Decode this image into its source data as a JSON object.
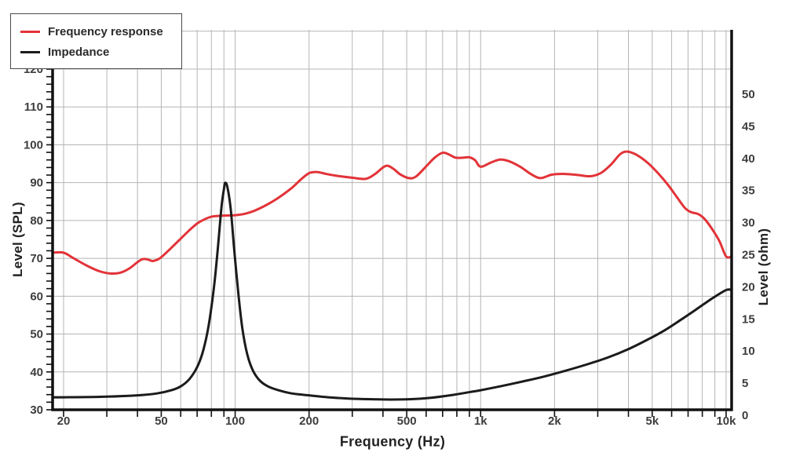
{
  "chart_data": {
    "type": "line",
    "x_scale": "log",
    "xlabel": "Frequency (Hz)",
    "ylabel_left": "Level (SPL)",
    "ylabel_right": "Level (ohm)",
    "x_range": [
      20,
      10000
    ],
    "y_left_range": [
      30,
      120
    ],
    "y_right_range": [
      0,
      50
    ],
    "grid": true,
    "legend_position": "top-left",
    "x_tick_values": [
      20,
      50,
      100,
      200,
      500,
      1000,
      2000,
      5000,
      10000
    ],
    "x_tick_labels": [
      "20",
      "50",
      "100",
      "200",
      "500",
      "1k",
      "2k",
      "5k",
      "10k"
    ],
    "x_minor_gridlines": [
      20,
      30,
      40,
      50,
      60,
      70,
      80,
      90,
      100,
      200,
      300,
      400,
      500,
      600,
      700,
      800,
      900,
      1000,
      2000,
      3000,
      4000,
      5000,
      6000,
      7000,
      8000,
      9000,
      10000
    ],
    "y_left_ticks": [
      30,
      40,
      50,
      60,
      70,
      80,
      90,
      100,
      110,
      120
    ],
    "y_left_minor_step": 2,
    "y_right_ticks": [
      0,
      5,
      10,
      15,
      20,
      25,
      30,
      35,
      40,
      45,
      50
    ],
    "series": [
      {
        "name": "Frequency response",
        "axis": "left",
        "unit": "dB SPL",
        "color": "#e23338",
        "points": [
          [
            20,
            71.5
          ],
          [
            22,
            70.0
          ],
          [
            25,
            68.0
          ],
          [
            28,
            66.6
          ],
          [
            31,
            66.0
          ],
          [
            34,
            66.2
          ],
          [
            37,
            67.3
          ],
          [
            40,
            69.0
          ],
          [
            42,
            69.8
          ],
          [
            44,
            69.7
          ],
          [
            46,
            69.3
          ],
          [
            48,
            69.6
          ],
          [
            50,
            70.3
          ],
          [
            55,
            72.8
          ],
          [
            60,
            75.2
          ],
          [
            65,
            77.4
          ],
          [
            70,
            79.2
          ],
          [
            75,
            80.3
          ],
          [
            80,
            81.0
          ],
          [
            85,
            81.2
          ],
          [
            90,
            81.3
          ],
          [
            100,
            81.4
          ],
          [
            110,
            81.8
          ],
          [
            120,
            82.6
          ],
          [
            135,
            84.2
          ],
          [
            150,
            86.0
          ],
          [
            170,
            88.6
          ],
          [
            185,
            90.8
          ],
          [
            200,
            92.5
          ],
          [
            215,
            92.8
          ],
          [
            235,
            92.3
          ],
          [
            260,
            91.8
          ],
          [
            300,
            91.3
          ],
          [
            340,
            91.0
          ],
          [
            370,
            92.2
          ],
          [
            410,
            94.4
          ],
          [
            440,
            93.7
          ],
          [
            470,
            92.2
          ],
          [
            510,
            91.2
          ],
          [
            545,
            91.6
          ],
          [
            600,
            94.3
          ],
          [
            650,
            96.6
          ],
          [
            700,
            97.9
          ],
          [
            745,
            97.4
          ],
          [
            790,
            96.6
          ],
          [
            850,
            96.6
          ],
          [
            900,
            96.7
          ],
          [
            950,
            95.9
          ],
          [
            1000,
            94.2
          ],
          [
            1100,
            95.3
          ],
          [
            1200,
            96.1
          ],
          [
            1300,
            95.7
          ],
          [
            1450,
            94.2
          ],
          [
            1600,
            92.3
          ],
          [
            1750,
            91.2
          ],
          [
            1950,
            92.1
          ],
          [
            2200,
            92.3
          ],
          [
            2500,
            92.0
          ],
          [
            2800,
            91.7
          ],
          [
            3100,
            92.6
          ],
          [
            3400,
            94.8
          ],
          [
            3700,
            97.5
          ],
          [
            3950,
            98.2
          ],
          [
            4300,
            97.4
          ],
          [
            4800,
            95.2
          ],
          [
            5300,
            92.4
          ],
          [
            5800,
            89.4
          ],
          [
            6300,
            86.2
          ],
          [
            6800,
            83.3
          ],
          [
            7200,
            82.2
          ],
          [
            7700,
            81.7
          ],
          [
            8200,
            80.3
          ],
          [
            8800,
            77.6
          ],
          [
            9400,
            74.5
          ],
          [
            10000,
            70.5
          ]
        ]
      },
      {
        "name": "Impedance",
        "axis": "right",
        "unit": "ohm",
        "color": "#1b1b1b",
        "points": [
          [
            20,
            2.8
          ],
          [
            30,
            2.9
          ],
          [
            40,
            3.1
          ],
          [
            48,
            3.4
          ],
          [
            55,
            3.9
          ],
          [
            60,
            4.5
          ],
          [
            65,
            5.6
          ],
          [
            70,
            7.5
          ],
          [
            74,
            10.0
          ],
          [
            78,
            14.0
          ],
          [
            82,
            20.0
          ],
          [
            85,
            26.0
          ],
          [
            88,
            32.5
          ],
          [
            90,
            35.2
          ],
          [
            91,
            36.2
          ],
          [
            93,
            35.5
          ],
          [
            96,
            32.0
          ],
          [
            99,
            26.0
          ],
          [
            103,
            19.0
          ],
          [
            107,
            13.5
          ],
          [
            112,
            9.5
          ],
          [
            118,
            7.0
          ],
          [
            126,
            5.4
          ],
          [
            136,
            4.5
          ],
          [
            150,
            3.9
          ],
          [
            170,
            3.4
          ],
          [
            200,
            3.1
          ],
          [
            240,
            2.8
          ],
          [
            290,
            2.6
          ],
          [
            350,
            2.5
          ],
          [
            430,
            2.45
          ],
          [
            520,
            2.5
          ],
          [
            620,
            2.7
          ],
          [
            750,
            3.1
          ],
          [
            900,
            3.6
          ],
          [
            1000,
            3.9
          ],
          [
            1200,
            4.5
          ],
          [
            1500,
            5.3
          ],
          [
            1800,
            6.0
          ],
          [
            2200,
            6.9
          ],
          [
            2700,
            7.9
          ],
          [
            3300,
            9.0
          ],
          [
            4000,
            10.3
          ],
          [
            4800,
            11.8
          ],
          [
            5600,
            13.2
          ],
          [
            6500,
            14.8
          ],
          [
            7500,
            16.4
          ],
          [
            8700,
            18.1
          ],
          [
            10000,
            19.5
          ]
        ]
      }
    ],
    "colors": {
      "grid": "#b5b5b5",
      "axis": "#111111",
      "tick_label": "#3d3d3d",
      "background": "#ffffff"
    }
  }
}
